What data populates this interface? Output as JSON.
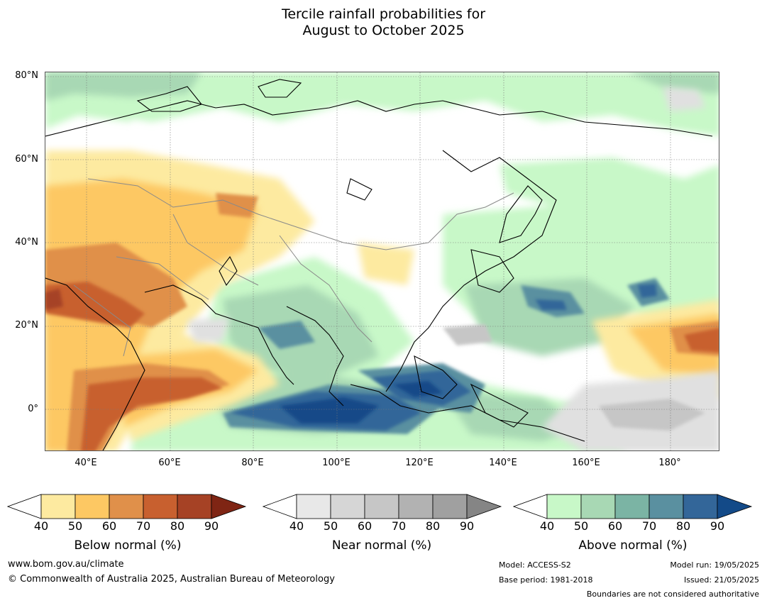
{
  "title": {
    "line1": "Tercile rainfall probabilities for",
    "line2": "August to October 2025"
  },
  "map": {
    "lat_ticks": [
      "80°N",
      "60°N",
      "40°N",
      "20°N",
      "0°"
    ],
    "lon_ticks": [
      "40°E",
      "60°E",
      "80°E",
      "100°E",
      "120°E",
      "140°E",
      "160°E",
      "180°"
    ],
    "extent": {
      "lon": [
        30,
        192
      ],
      "lat": [
        -10,
        81
      ]
    }
  },
  "colorbars": [
    {
      "id": "below",
      "label": "Below normal (%)",
      "ticks": [
        "40",
        "50",
        "60",
        "70",
        "80",
        "90"
      ],
      "colors": [
        "#ffffff",
        "#fdeaa0",
        "#fdc863",
        "#e0904a",
        "#c8602f",
        "#a64225",
        "#7f2514"
      ]
    },
    {
      "id": "near",
      "label": "Near normal (%)",
      "ticks": [
        "40",
        "50",
        "60",
        "70",
        "80",
        "90"
      ],
      "colors": [
        "#ffffff",
        "#e8e8e8",
        "#d6d6d6",
        "#c6c6c6",
        "#b2b2b2",
        "#a0a0a0",
        "#858585"
      ]
    },
    {
      "id": "above",
      "label": "Above normal (%)",
      "ticks": [
        "40",
        "50",
        "60",
        "70",
        "80",
        "90"
      ],
      "colors": [
        "#ffffff",
        "#c8f8c8",
        "#a8d8b4",
        "#7bb4a4",
        "#5a90a0",
        "#336699",
        "#134a88"
      ]
    }
  ],
  "footer": {
    "website": "www.bom.gov.au/climate",
    "copyright": "© Commonwealth of Australia 2025, Australian Bureau of Meteorology",
    "model": "Model: ACCESS-S2",
    "base_period": "Base period: 1981-2018",
    "model_run": "Model run: 19/05/2025",
    "issued": "Issued: 21/05/2025",
    "disclaimer": "Boundaries are not considered authoritative"
  }
}
